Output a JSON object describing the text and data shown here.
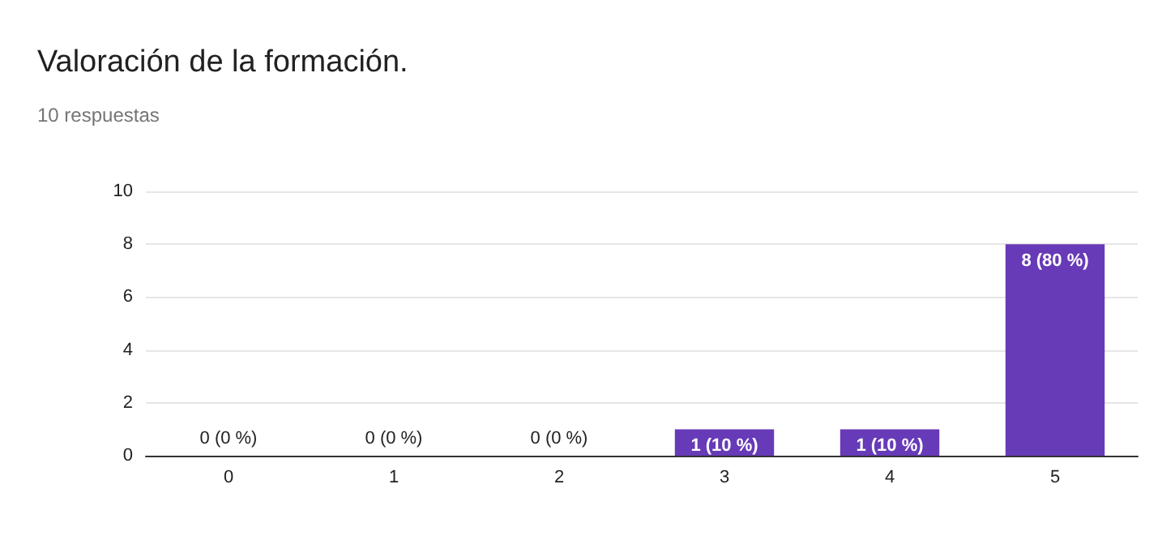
{
  "chart_data": {
    "type": "bar",
    "title": "Valoración de la formación.",
    "subtitle": "10 respuestas",
    "categories": [
      "0",
      "1",
      "2",
      "3",
      "4",
      "5"
    ],
    "values": [
      0,
      0,
      0,
      1,
      1,
      8
    ],
    "value_labels": [
      "0 (0 %)",
      "0 (0 %)",
      "0 (0 %)",
      "1 (10 %)",
      "1 (10 %)",
      "8 (80 %)"
    ],
    "color": "#673ab7",
    "ylim": [
      0,
      10
    ],
    "yticks": [
      0,
      2,
      4,
      6,
      8,
      10
    ],
    "grid": "y"
  }
}
